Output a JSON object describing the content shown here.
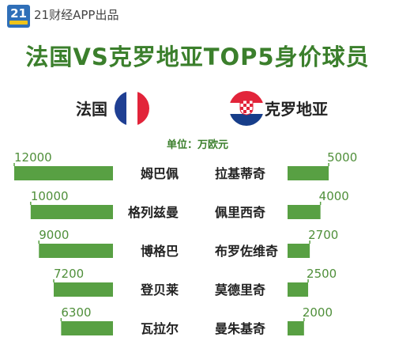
{
  "header": {
    "badge": "21",
    "brand": "21财经APP出品"
  },
  "title": "法国VS克罗地亚TOP5身价球员",
  "left_team": {
    "name": "法国"
  },
  "right_team": {
    "name": "克罗地亚"
  },
  "unit_label": "单位：万欧元",
  "colors": {
    "bar": "#58a043",
    "value_text": "#4f8f3a",
    "title": "#3b7f2c",
    "france_blue": "#1f3f93",
    "france_red": "#e2243a",
    "croatia_red": "#e2243a",
    "croatia_blue": "#173e8a"
  },
  "chart_data": {
    "type": "bar",
    "orientation": "horizontal-butterfly",
    "unit": "万欧元",
    "series": [
      {
        "team": "法国",
        "categories": [
          "姆巴佩",
          "格列兹曼",
          "博格巴",
          "登贝莱",
          "瓦拉尔"
        ],
        "values": [
          12000,
          10000,
          9000,
          7200,
          6300
        ]
      },
      {
        "team": "克罗地亚",
        "categories": [
          "拉基蒂奇",
          "佩里西奇",
          "布罗佐维奇",
          "莫德里奇",
          "曼朱基奇"
        ],
        "values": [
          5000,
          4000,
          2700,
          2500,
          2000
        ]
      }
    ]
  }
}
